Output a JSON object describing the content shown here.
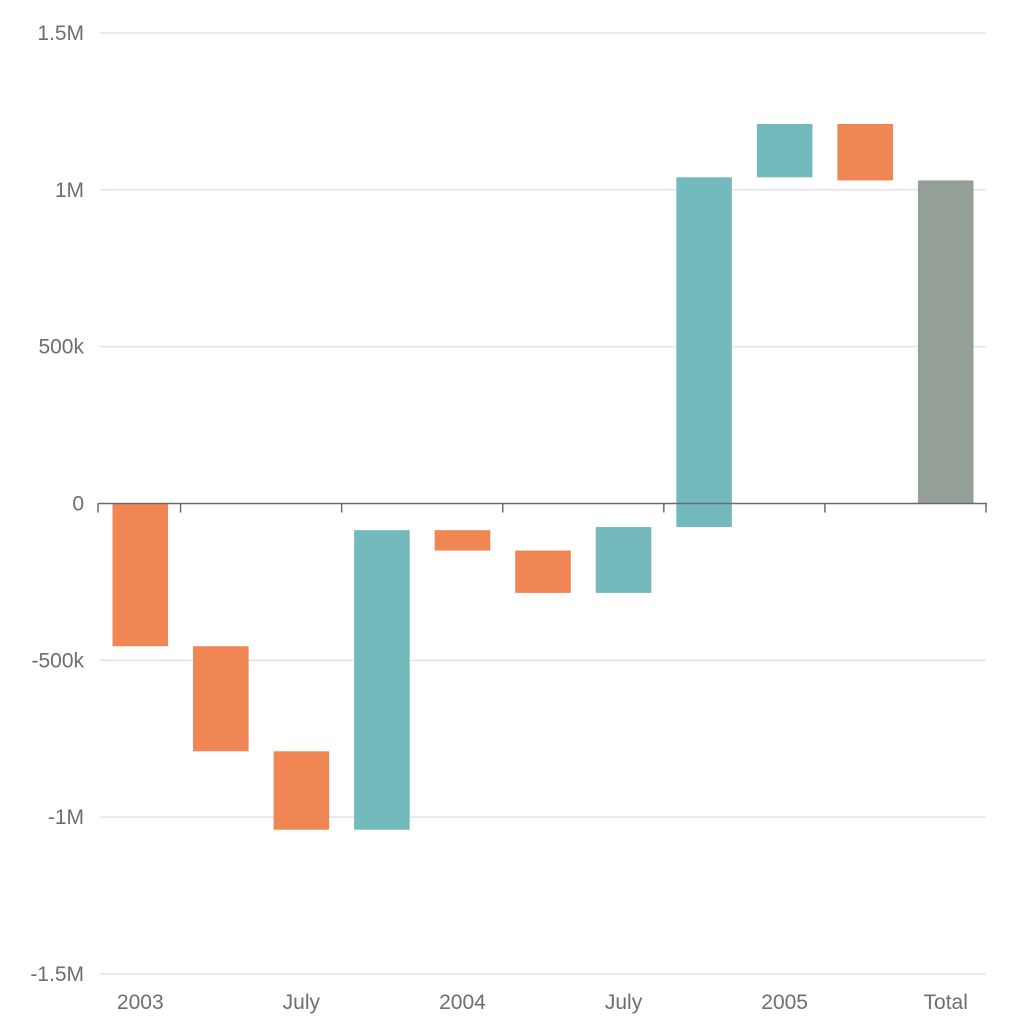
{
  "chart_data": {
    "type": "bar",
    "subtype": "waterfall",
    "title": "",
    "xlabel": "",
    "ylabel": "",
    "ylim": [
      -1500000,
      1500000
    ],
    "y_ticks": [
      {
        "value": 1500000,
        "label": "1.5M"
      },
      {
        "value": 1000000,
        "label": "1M"
      },
      {
        "value": 500000,
        "label": "500k"
      },
      {
        "value": 0,
        "label": "0"
      },
      {
        "value": -500000,
        "label": "-500k"
      },
      {
        "value": -1000000,
        "label": "-1M"
      },
      {
        "value": -1500000,
        "label": "-1.5M"
      }
    ],
    "x_tick_labels": [
      {
        "label": "2003",
        "bar_index": 0
      },
      {
        "label": "July",
        "bar_index": 2
      },
      {
        "label": "2004",
        "bar_index": 4
      },
      {
        "label": "July",
        "bar_index": 6
      },
      {
        "label": "2005",
        "bar_index": 8
      },
      {
        "label": "Total",
        "bar_index": 10
      }
    ],
    "x_tick_marks_after_bar": [
      0,
      2,
      4,
      6,
      8,
      10
    ],
    "bars": [
      {
        "start": 0,
        "end": -455000,
        "kind": "decrease"
      },
      {
        "start": -455000,
        "end": -790000,
        "kind": "decrease"
      },
      {
        "start": -790000,
        "end": -1040000,
        "kind": "decrease"
      },
      {
        "start": -1040000,
        "end": -85000,
        "kind": "increase"
      },
      {
        "start": -85000,
        "end": -150000,
        "kind": "decrease"
      },
      {
        "start": -150000,
        "end": -285000,
        "kind": "decrease"
      },
      {
        "start": -285000,
        "end": -75000,
        "kind": "increase"
      },
      {
        "start": -75000,
        "end": 1040000,
        "kind": "increase"
      },
      {
        "start": 1040000,
        "end": 1210000,
        "kind": "increase"
      },
      {
        "start": 1210000,
        "end": 1030000,
        "kind": "decrease"
      },
      {
        "start": 0,
        "end": 1030000,
        "kind": "total"
      }
    ],
    "colors": {
      "increase": "#74babd",
      "decrease": "#f08653",
      "total": "#949f96"
    },
    "grid": true,
    "legend": "none"
  }
}
